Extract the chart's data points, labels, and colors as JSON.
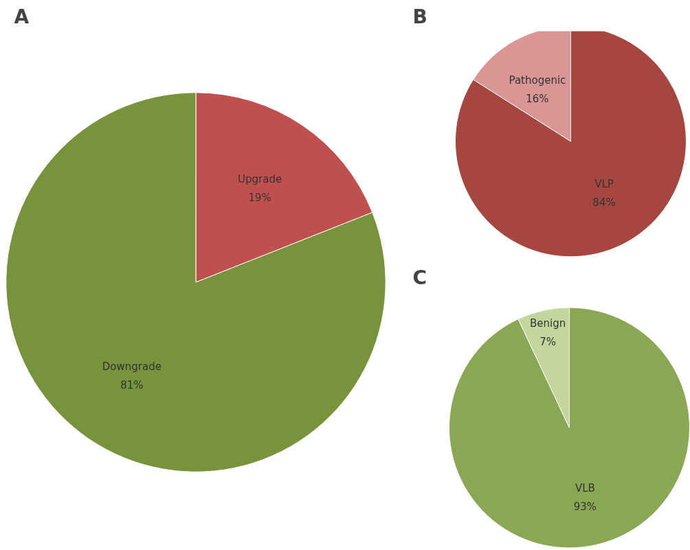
{
  "chart_data": [
    {
      "type": "pie",
      "title": "A",
      "categories": [
        "Upgrade",
        "Downgrade"
      ],
      "values": [
        19,
        81
      ],
      "colors": [
        "#c0504d",
        "#77933c"
      ],
      "value_labels": [
        "19%",
        "81%"
      ]
    },
    {
      "type": "pie",
      "title": "B",
      "categories": [
        "VLP",
        "Pathogenic"
      ],
      "values": [
        84,
        16
      ],
      "colors": [
        "#a5473f",
        "#d99694"
      ],
      "value_labels": [
        "84%",
        "16%"
      ]
    },
    {
      "type": "pie",
      "title": "C",
      "categories": [
        "VLB",
        "Benign"
      ],
      "values": [
        93,
        7
      ],
      "colors": [
        "#8aa853",
        "#c3d69b"
      ],
      "value_labels": [
        "93%",
        "7%"
      ]
    }
  ]
}
